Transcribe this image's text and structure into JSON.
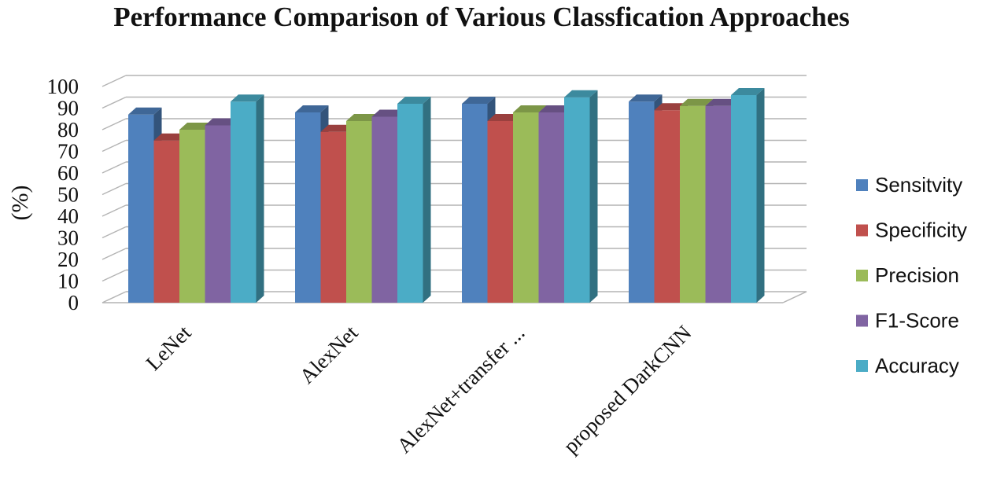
{
  "chart_data": {
    "type": "bar",
    "title": "Performance Comparison of Various Classfication Approaches",
    "ylabel": "(%)",
    "xlabel": "",
    "ylim": [
      0,
      100
    ],
    "yticks": [
      0,
      10,
      20,
      30,
      40,
      50,
      60,
      70,
      80,
      90,
      100
    ],
    "grid": true,
    "legend_position": "right",
    "style": "3d-clustered-column",
    "categories": [
      "LeNet",
      "AlexNet",
      "AlexNet+transfer ...",
      "proposed DarkCNN"
    ],
    "series": [
      {
        "name": "Sensitvity",
        "color": "#4F81BD",
        "values": [
          87,
          88,
          92,
          93
        ]
      },
      {
        "name": "Specificity",
        "color": "#C0504D",
        "values": [
          75,
          79,
          84,
          89
        ]
      },
      {
        "name": "Precision",
        "color": "#9BBB59",
        "values": [
          80,
          84,
          88,
          91
        ]
      },
      {
        "name": "F1-Score",
        "color": "#8064A2",
        "values": [
          82,
          86,
          88,
          91
        ]
      },
      {
        "name": "Accuracy",
        "color": "#4BACC6",
        "values": [
          93,
          92,
          95,
          96
        ]
      }
    ]
  }
}
